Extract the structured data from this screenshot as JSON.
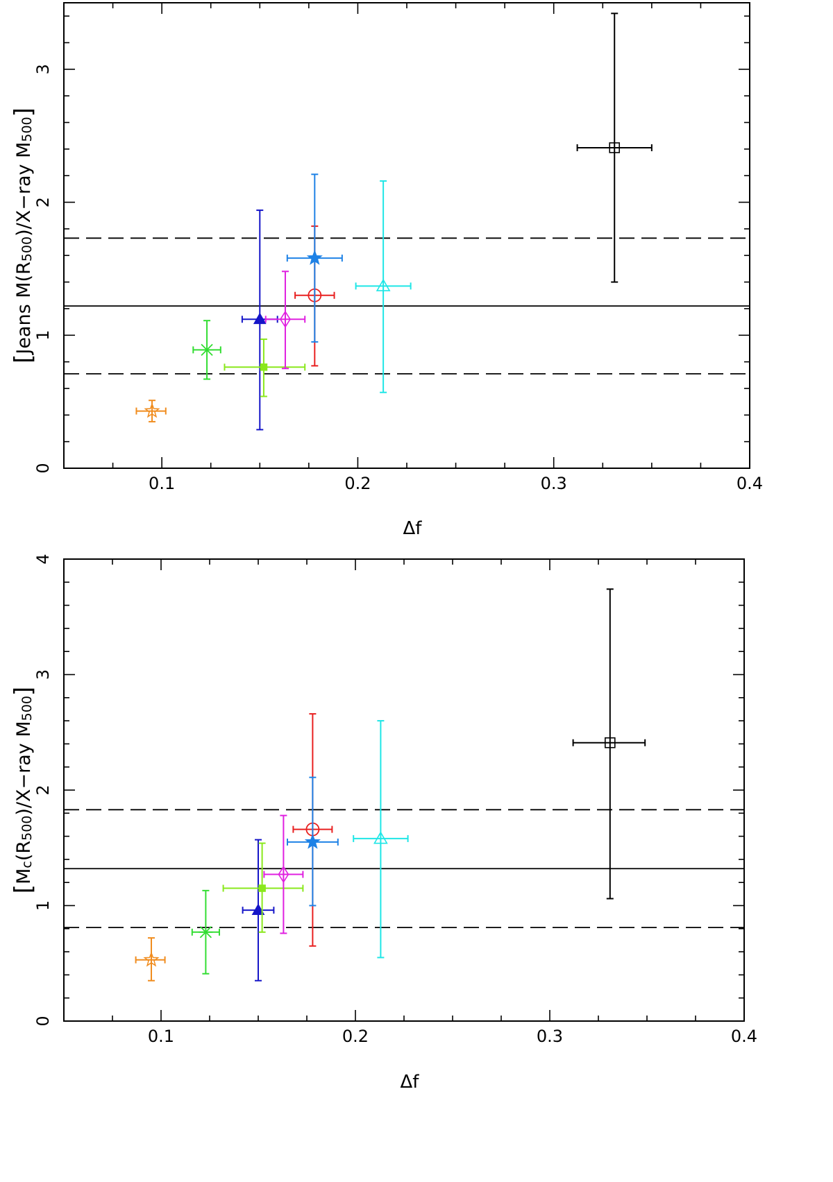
{
  "chart_data": [
    {
      "type": "scatter",
      "title": "",
      "xlabel": "Δf",
      "ylabel": {
        "prefix": "Jeans M(R",
        "sub1": "500",
        "mid": ")/X−ray M",
        "sub2": "500"
      },
      "xlim": [
        0.05,
        0.4
      ],
      "ylim": [
        0,
        3.5
      ],
      "xticks": [
        0.1,
        0.2,
        0.3,
        0.4
      ],
      "xtick_labels": [
        "0.1",
        "0.2",
        "0.3",
        "0.4"
      ],
      "yticks": [
        0,
        1,
        2,
        3
      ],
      "ytick_labels": [
        "0",
        "1",
        "2",
        "3"
      ],
      "hlines": [
        {
          "y": 1.22,
          "style": "solid"
        },
        {
          "y": 1.73,
          "style": "dashed"
        },
        {
          "y": 0.71,
          "style": "dashed"
        }
      ],
      "points": [
        {
          "x": 0.095,
          "y": 0.43,
          "xerr": [
            0.087,
            0.102
          ],
          "yerr": [
            0.35,
            0.51
          ],
          "marker": "star-open",
          "color": "#f08c1e"
        },
        {
          "x": 0.123,
          "y": 0.89,
          "xerr": [
            0.116,
            0.13
          ],
          "yerr": [
            0.67,
            1.11
          ],
          "marker": "asterisk",
          "color": "#33dd33"
        },
        {
          "x": 0.15,
          "y": 1.12,
          "xerr": [
            0.141,
            0.159
          ],
          "yerr": [
            0.29,
            1.94
          ],
          "marker": "triangle-filled",
          "color": "#1515c8"
        },
        {
          "x": 0.152,
          "y": 0.76,
          "xerr": [
            0.132,
            0.173
          ],
          "yerr": [
            0.54,
            0.97
          ],
          "marker": "square-filled",
          "color": "#8ae81c"
        },
        {
          "x": 0.163,
          "y": 1.12,
          "xerr": [
            0.153,
            0.173
          ],
          "yerr": [
            0.75,
            1.48
          ],
          "marker": "diamond-open",
          "color": "#e020e0"
        },
        {
          "x": 0.178,
          "y": 1.3,
          "xerr": [
            0.168,
            0.188
          ],
          "yerr": [
            0.77,
            1.82
          ],
          "marker": "circle-open",
          "color": "#e82020"
        },
        {
          "x": 0.178,
          "y": 1.58,
          "xerr": [
            0.164,
            0.192
          ],
          "yerr": [
            0.95,
            2.21
          ],
          "marker": "star-filled",
          "color": "#1e82e6"
        },
        {
          "x": 0.213,
          "y": 1.37,
          "xerr": [
            0.199,
            0.227
          ],
          "yerr": [
            0.57,
            2.16
          ],
          "marker": "triangle-open",
          "color": "#1ee6e6"
        },
        {
          "x": 0.331,
          "y": 2.41,
          "xerr": [
            0.312,
            0.35
          ],
          "yerr": [
            1.4,
            3.42
          ],
          "marker": "square-open",
          "color": "#000000"
        }
      ]
    },
    {
      "type": "scatter",
      "title": "",
      "xlabel": "Δf",
      "ylabel": {
        "prefix": "M",
        "sub0": "c",
        "paren": "(R",
        "sub1": "500",
        "mid": ")/X−ray M",
        "sub2": "500"
      },
      "xlim": [
        0.05,
        0.4
      ],
      "ylim": [
        0,
        4
      ],
      "xticks": [
        0.1,
        0.2,
        0.3,
        0.4
      ],
      "xtick_labels": [
        "0.1",
        "0.2",
        "0.3",
        "0.4"
      ],
      "yticks": [
        0,
        1,
        2,
        3,
        4
      ],
      "ytick_labels": [
        "0",
        "1",
        "2",
        "3",
        "4"
      ],
      "hlines": [
        {
          "y": 1.32,
          "style": "solid"
        },
        {
          "y": 1.83,
          "style": "dashed"
        },
        {
          "y": 0.81,
          "style": "dashed"
        }
      ],
      "points": [
        {
          "x": 0.095,
          "y": 0.53,
          "xerr": [
            0.087,
            0.102
          ],
          "yerr": [
            0.35,
            0.72
          ],
          "marker": "star-open",
          "color": "#f08c1e"
        },
        {
          "x": 0.123,
          "y": 0.77,
          "xerr": [
            0.116,
            0.13
          ],
          "yerr": [
            0.41,
            1.13
          ],
          "marker": "asterisk",
          "color": "#33dd33"
        },
        {
          "x": 0.15,
          "y": 0.96,
          "xerr": [
            0.142,
            0.158
          ],
          "yerr": [
            0.35,
            1.57
          ],
          "marker": "triangle-filled",
          "color": "#1515c8"
        },
        {
          "x": 0.152,
          "y": 1.15,
          "xerr": [
            0.132,
            0.173
          ],
          "yerr": [
            0.77,
            1.54
          ],
          "marker": "square-filled",
          "color": "#8ae81c"
        },
        {
          "x": 0.163,
          "y": 1.27,
          "xerr": [
            0.153,
            0.173
          ],
          "yerr": [
            0.76,
            1.78
          ],
          "marker": "diamond-open",
          "color": "#e020e0"
        },
        {
          "x": 0.178,
          "y": 1.66,
          "xerr": [
            0.168,
            0.188
          ],
          "yerr": [
            0.65,
            2.66
          ],
          "marker": "circle-open",
          "color": "#e82020"
        },
        {
          "x": 0.178,
          "y": 1.55,
          "xerr": [
            0.165,
            0.191
          ],
          "yerr": [
            1.0,
            2.11
          ],
          "marker": "star-filled",
          "color": "#1e82e6"
        },
        {
          "x": 0.213,
          "y": 1.58,
          "xerr": [
            0.199,
            0.227
          ],
          "yerr": [
            0.55,
            2.6
          ],
          "marker": "triangle-open",
          "color": "#1ee6e6"
        },
        {
          "x": 0.331,
          "y": 2.41,
          "xerr": [
            0.312,
            0.349
          ],
          "yerr": [
            1.06,
            3.74
          ],
          "marker": "square-open",
          "color": "#000000"
        }
      ]
    }
  ]
}
